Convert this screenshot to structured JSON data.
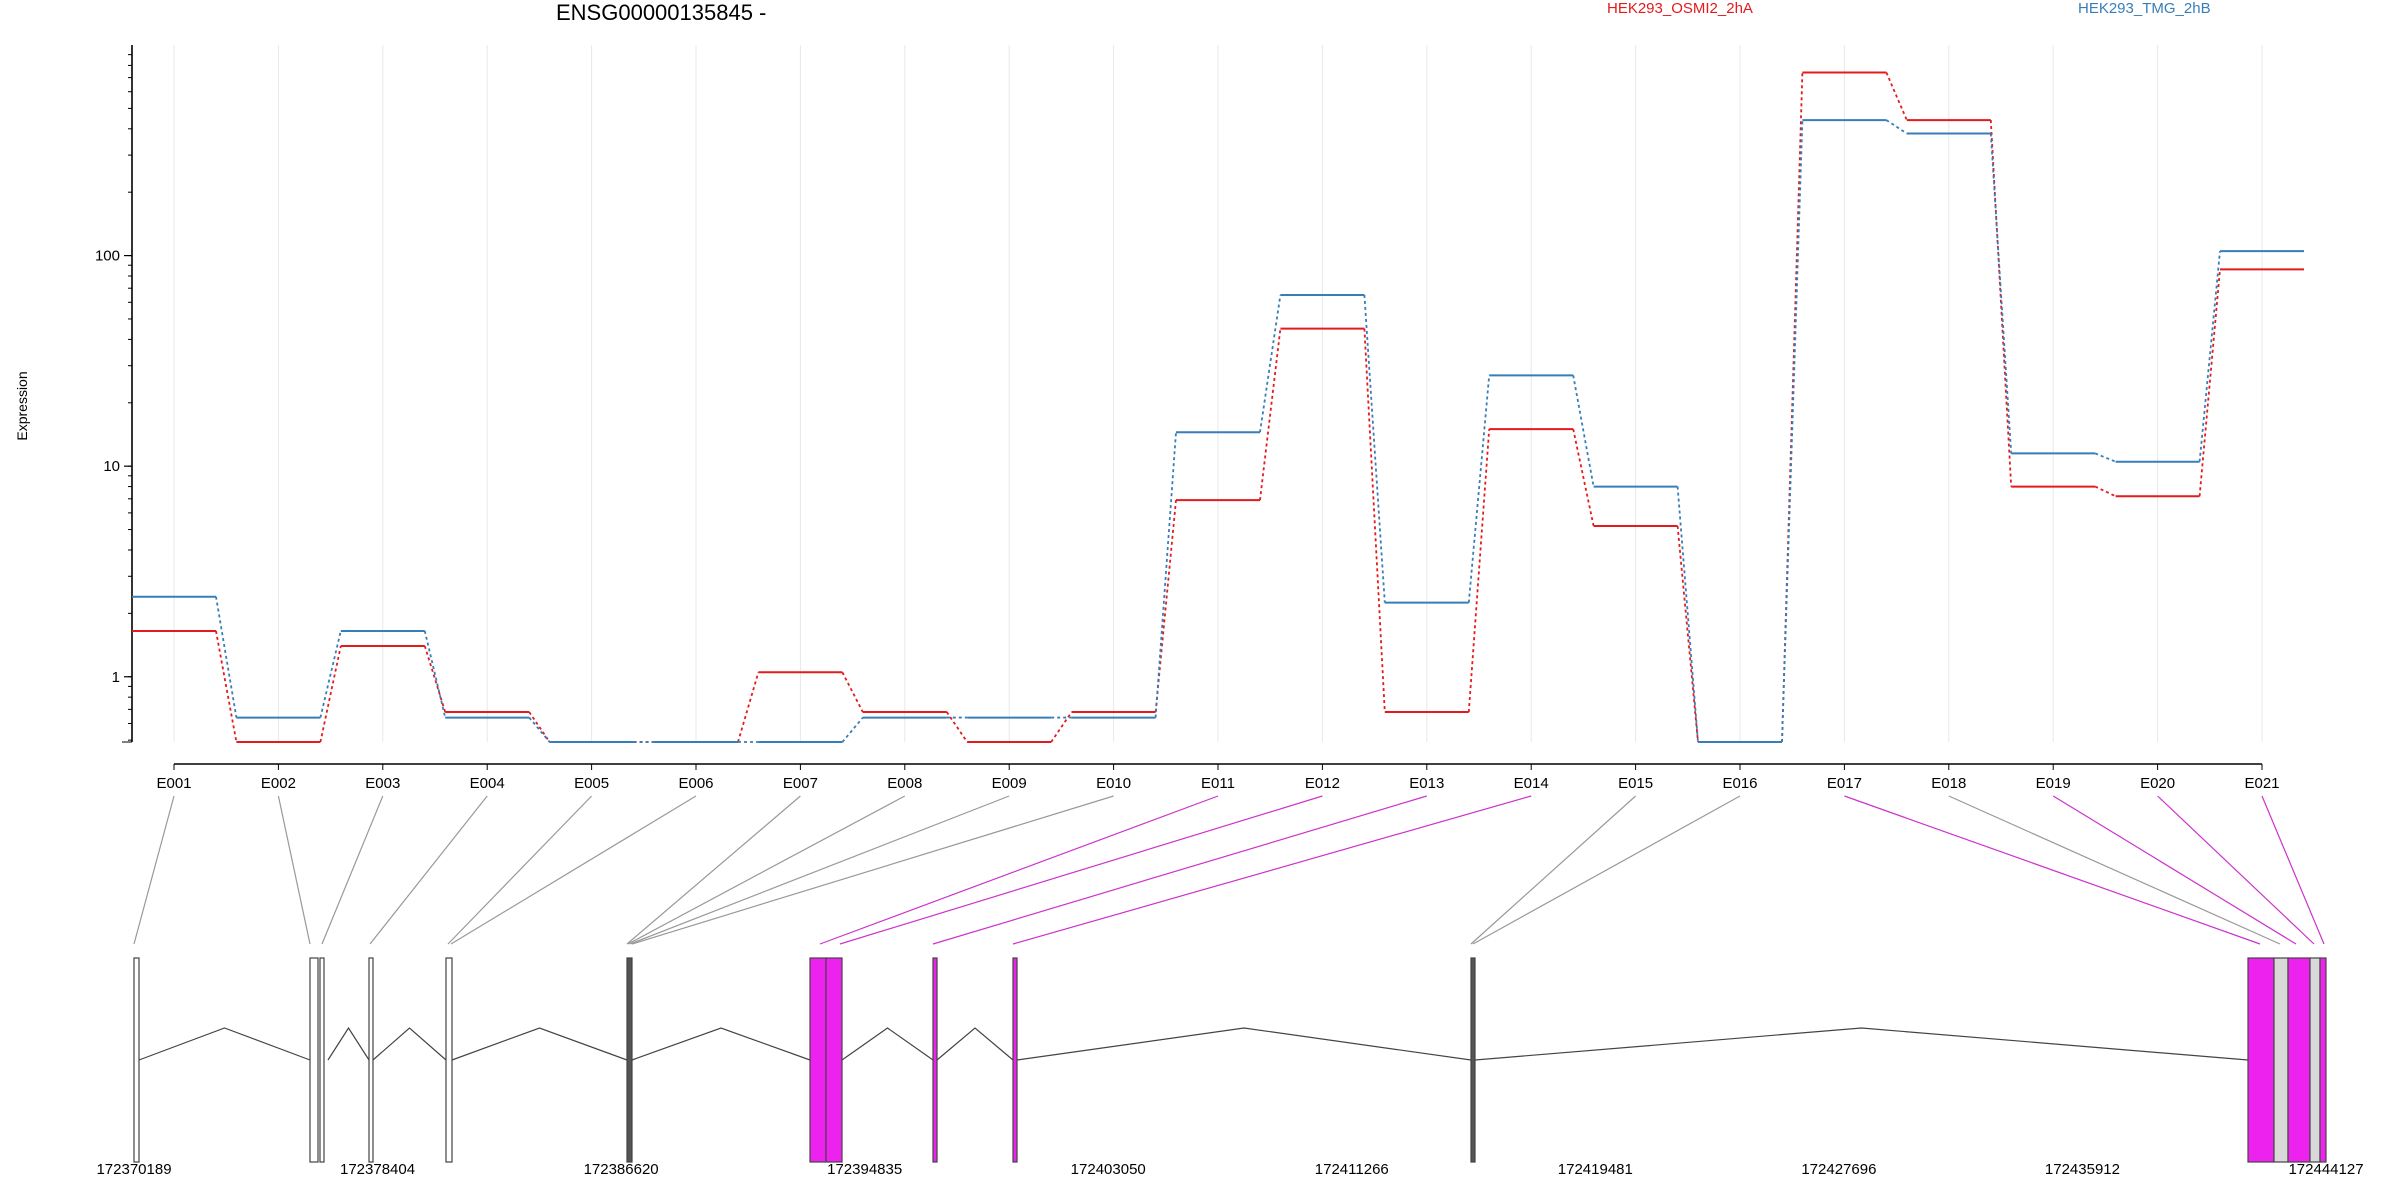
{
  "title": "ENSG00000135845 -",
  "chart_data": {
    "type": "line",
    "title": "ENSG00000135845 -",
    "xlabel": "",
    "ylabel": "Expression",
    "yscale": "log",
    "ylim": [
      0.49,
      1000
    ],
    "ytick_values": [
      1,
      10,
      100
    ],
    "ytick_labels": [
      "1",
      "10",
      "100"
    ],
    "grid": true,
    "legend_placement": "top",
    "categories": [
      "E001",
      "E002",
      "E003",
      "E004",
      "E005",
      "E006",
      "E007",
      "E008",
      "E009",
      "E010",
      "E011",
      "E012",
      "E013",
      "E014",
      "E015",
      "E016",
      "E017",
      "E018",
      "E019",
      "E020",
      "E021"
    ],
    "series": [
      {
        "name": "HEK293_OSMI2_2hA",
        "color": "#e41a1c",
        "values": [
          1.65,
          0.49,
          1.4,
          0.68,
          0.49,
          0.49,
          1.05,
          0.68,
          0.49,
          0.68,
          6.9,
          45,
          0.68,
          15,
          5.2,
          0.49,
          740,
          440,
          8,
          7.2,
          86
        ]
      },
      {
        "name": "HEK293_TMG_2hB",
        "color": "#377eb8",
        "values": [
          2.4,
          0.64,
          1.65,
          0.64,
          0.49,
          0.49,
          0.49,
          0.64,
          0.64,
          0.64,
          14.5,
          65,
          2.25,
          27,
          8,
          0.49,
          440,
          380,
          11.5,
          10.5,
          105
        ]
      }
    ],
    "genomic_axis": {
      "tick_labels": [
        "172370189",
        "172378404",
        "172386620",
        "172394835",
        "172403050",
        "172411266",
        "172419481",
        "172427696",
        "172435912",
        "172444127"
      ]
    },
    "exon_colors": {
      "default": "#ffffff",
      "significant": "#ee22ee",
      "outline": "#555555",
      "other": "#d9d9d9"
    },
    "exon_significant": [
      false,
      false,
      false,
      false,
      false,
      false,
      false,
      false,
      false,
      false,
      true,
      true,
      true,
      true,
      false,
      false,
      true,
      false,
      true,
      true,
      true
    ]
  }
}
